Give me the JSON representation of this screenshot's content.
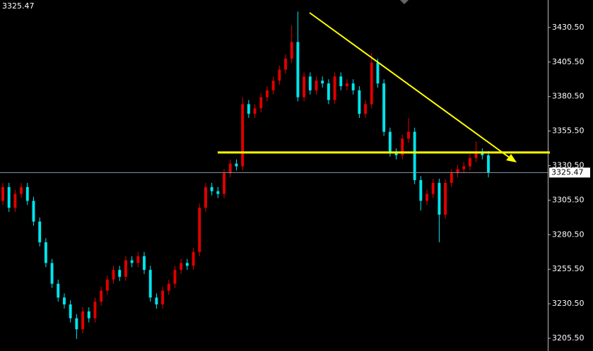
{
  "chart_data": {
    "type": "candlestick",
    "current_price": 3325.47,
    "level": 3340,
    "up_color": "#e00000",
    "down_color": "#00e5ee",
    "level_color": "#ffff00",
    "ylim": [
      3196.3,
      3450.4
    ],
    "yticks": [
      {
        "value": 3205.5,
        "label": "3205.50"
      },
      {
        "value": 3230.5,
        "label": "3230.50"
      },
      {
        "value": 3255.5,
        "label": "3255.50"
      },
      {
        "value": 3280.5,
        "label": "3280.50"
      },
      {
        "value": 3305.5,
        "label": "3305.50"
      },
      {
        "value": 3330.5,
        "label": "3330.50"
      },
      {
        "value": 3355.5,
        "label": "3355.50"
      },
      {
        "value": 3380.5,
        "label": "3380.50"
      },
      {
        "value": 3405.5,
        "label": "3405.50"
      },
      {
        "value": 3430.5,
        "label": "3430.50"
      }
    ],
    "open": [
      3305,
      3315,
      3300,
      3310,
      3315,
      3305,
      3290,
      3275,
      3260,
      3245,
      3235,
      3230,
      3220,
      3212,
      3225,
      3220,
      3232,
      3240,
      3248,
      3255,
      3250,
      3262,
      3260,
      3265,
      3255,
      3235,
      3230,
      3240,
      3245,
      3255,
      3260,
      3258,
      3268,
      3300,
      3315,
      3312,
      3310,
      3325,
      3332,
      3330,
      3375,
      3368,
      3372,
      3380,
      3385,
      3392,
      3400,
      3408,
      3420,
      3380,
      3395,
      3385,
      3392,
      3390,
      3378,
      3395,
      3388,
      3390,
      3385,
      3368,
      3375,
      3405,
      3390,
      3355,
      3340,
      3338,
      3350,
      3355,
      3320,
      3305,
      3310,
      3318,
      3295,
      3318,
      3325,
      3328,
      3330,
      3336,
      3340,
      3338
    ],
    "high": [
      3318,
      3318,
      3313,
      3318,
      3318,
      3308,
      3293,
      3278,
      3263,
      3248,
      3238,
      3233,
      3223,
      3228,
      3228,
      3235,
      3243,
      3251,
      3258,
      3258,
      3265,
      3265,
      3268,
      3268,
      3258,
      3238,
      3243,
      3248,
      3258,
      3263,
      3263,
      3271,
      3303,
      3318,
      3318,
      3315,
      3328,
      3335,
      3335,
      3380,
      3378,
      3375,
      3383,
      3388,
      3395,
      3403,
      3411,
      3432,
      3442,
      3398,
      3398,
      3395,
      3395,
      3393,
      3398,
      3398,
      3393,
      3393,
      3388,
      3378,
      3412,
      3408,
      3393,
      3358,
      3343,
      3353,
      3365,
      3358,
      3323,
      3313,
      3321,
      3321,
      3321,
      3328,
      3331,
      3333,
      3339,
      3348,
      3343,
      3341
    ],
    "low": [
      3302,
      3297,
      3297,
      3307,
      3302,
      3287,
      3272,
      3257,
      3242,
      3232,
      3227,
      3217,
      3205,
      3209,
      3217,
      3217,
      3229,
      3237,
      3245,
      3247,
      3247,
      3257,
      3257,
      3252,
      3232,
      3227,
      3227,
      3237,
      3242,
      3252,
      3255,
      3255,
      3265,
      3297,
      3309,
      3307,
      3307,
      3322,
      3327,
      3327,
      3365,
      3365,
      3369,
      3377,
      3382,
      3389,
      3397,
      3405,
      3377,
      3377,
      3382,
      3382,
      3387,
      3375,
      3375,
      3385,
      3385,
      3382,
      3365,
      3365,
      3372,
      3387,
      3352,
      3337,
      3335,
      3335,
      3347,
      3317,
      3298,
      3302,
      3307,
      3275,
      3292,
      3315,
      3322,
      3325,
      3327,
      3333,
      3335,
      3322
    ],
    "close": [
      3315,
      3300,
      3310,
      3315,
      3305,
      3290,
      3275,
      3260,
      3245,
      3235,
      3230,
      3220,
      3212,
      3225,
      3220,
      3232,
      3240,
      3248,
      3255,
      3250,
      3262,
      3260,
      3265,
      3255,
      3235,
      3230,
      3240,
      3245,
      3255,
      3260,
      3258,
      3268,
      3300,
      3315,
      3312,
      3310,
      3325,
      3332,
      3330,
      3375,
      3368,
      3372,
      3380,
      3385,
      3392,
      3400,
      3408,
      3420,
      3380,
      3395,
      3385,
      3392,
      3390,
      3378,
      3395,
      3388,
      3390,
      3385,
      3368,
      3375,
      3405,
      3390,
      3355,
      3340,
      3338,
      3350,
      3355,
      3320,
      3305,
      3310,
      3318,
      3295,
      3318,
      3325,
      3328,
      3330,
      3336,
      3340,
      3338,
      3325.47
    ]
  }
}
